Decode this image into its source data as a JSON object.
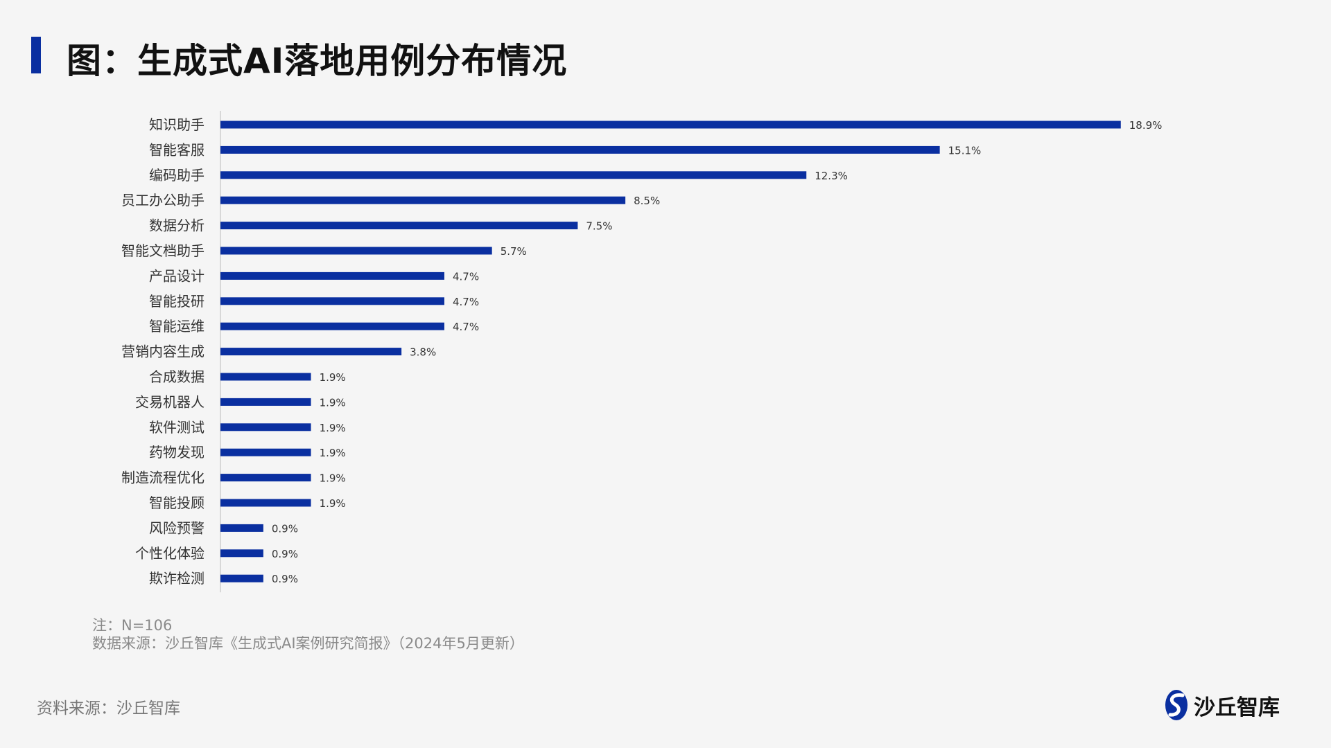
{
  "title": "图：生成式AI落地用例分布情况",
  "colors": {
    "bar": "#0a2fa0",
    "accent": "#0a2fa0",
    "axis": "#cfcfcf"
  },
  "notes": {
    "line1": "注：N=106",
    "line2": "数据来源：沙丘智库《生成式AI案例研究简报》（2024年5月更新）"
  },
  "footer": {
    "source": "资料来源：沙丘智库",
    "logo_icon": "shaqiu-logo-icon",
    "logo_text": "沙丘智库"
  },
  "chart_data": {
    "type": "bar",
    "orientation": "horizontal",
    "categories": [
      "知识助手",
      "智能客服",
      "编码助手",
      "员工办公助手",
      "数据分析",
      "智能文档助手",
      "产品设计",
      "智能投研",
      "智能运维",
      "营销内容生成",
      "合成数据",
      "交易机器人",
      "软件测试",
      "药物发现",
      "制造流程优化",
      "智能投顾",
      "风险预警",
      "个性化体验",
      "欺诈检测"
    ],
    "values": [
      18.9,
      15.1,
      12.3,
      8.5,
      7.5,
      5.7,
      4.7,
      4.7,
      4.7,
      3.8,
      1.9,
      1.9,
      1.9,
      1.9,
      1.9,
      1.9,
      0.9,
      0.9,
      0.9
    ],
    "value_labels": [
      "18.9%",
      "15.1%",
      "12.3%",
      "8.5%",
      "7.5%",
      "5.7%",
      "4.7%",
      "4.7%",
      "4.7%",
      "3.8%",
      "1.9%",
      "1.9%",
      "1.9%",
      "1.9%",
      "1.9%",
      "1.9%",
      "0.9%",
      "0.9%",
      "0.9%"
    ],
    "unit": "%",
    "xlim": [
      0,
      19.5
    ],
    "grid": false,
    "legend": "none"
  }
}
